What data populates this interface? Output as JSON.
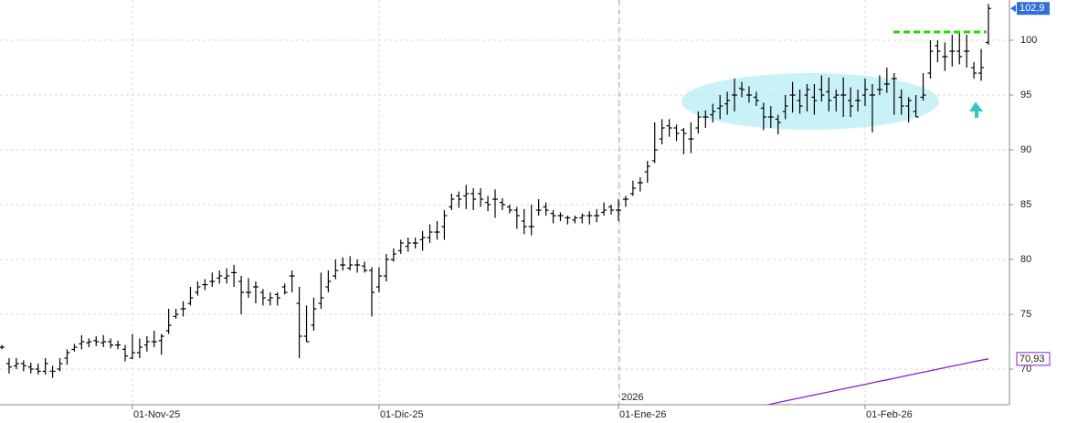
{
  "chart_data": {
    "type": "ohlc",
    "ylim": [
      66.75,
      103.67
    ],
    "yticks": [
      70,
      75,
      80,
      85,
      90,
      95,
      100
    ],
    "grid": true,
    "bar_color": "#000000",
    "year_label": "2026",
    "year_index": 85,
    "close_label": "102,9",
    "resistance": {
      "value": 100.75,
      "color": "#22dd00"
    },
    "categories": [
      null,
      null,
      null,
      null,
      null,
      null,
      null,
      null,
      null,
      null,
      null,
      null,
      null,
      null,
      null,
      null,
      null,
      null,
      "01-Nov-25",
      null,
      null,
      null,
      null,
      null,
      null,
      null,
      null,
      null,
      null,
      null,
      null,
      null,
      null,
      null,
      null,
      null,
      null,
      null,
      null,
      null,
      null,
      null,
      null,
      null,
      null,
      null,
      null,
      null,
      null,
      null,
      null,
      null,
      "01-Dic-25",
      null,
      null,
      null,
      null,
      null,
      null,
      null,
      null,
      null,
      null,
      null,
      null,
      null,
      null,
      null,
      null,
      null,
      null,
      null,
      null,
      null,
      null,
      null,
      null,
      null,
      null,
      null,
      null,
      null,
      null,
      null,
      null,
      "01-Ene-26",
      null,
      null,
      null,
      null,
      null,
      null,
      null,
      null,
      null,
      null,
      null,
      null,
      null,
      null,
      null,
      null,
      null,
      null,
      null,
      null,
      null,
      null,
      null,
      null,
      null,
      null,
      null,
      null,
      null,
      null,
      null,
      null,
      null,
      "01-Feb-26",
      null,
      null,
      null,
      null,
      null,
      null,
      null,
      null,
      null,
      null,
      null,
      null,
      null,
      null,
      null,
      null,
      null
    ],
    "bars": [
      [
        72,
        72.2,
        71.8,
        72
      ],
      [
        70.5,
        71,
        69.6,
        70.2
      ],
      [
        70.3,
        71,
        70,
        70.5
      ],
      [
        70.5,
        70.8,
        69.8,
        70.3
      ],
      [
        70.2,
        70.6,
        69.6,
        70
      ],
      [
        70,
        70.5,
        69.5,
        69.8
      ],
      [
        69.8,
        71,
        69.5,
        70.5
      ],
      [
        69.8,
        70.3,
        69.2,
        69.8
      ],
      [
        70,
        71,
        69.8,
        70.5
      ],
      [
        71,
        71.8,
        70.4,
        71.5
      ],
      [
        71.8,
        72.3,
        71.6,
        72
      ],
      [
        72.3,
        73.1,
        71.8,
        72.5
      ],
      [
        72.4,
        72.8,
        72,
        72.5
      ],
      [
        72.6,
        73,
        72.1,
        72.5
      ],
      [
        72.4,
        73.1,
        72,
        72.5
      ],
      [
        72.5,
        72.8,
        71.9,
        72.2
      ],
      [
        72.2,
        72.6,
        71.8,
        72.2
      ],
      [
        71.8,
        72.2,
        70.7,
        71.2
      ],
      [
        71,
        73.2,
        70.9,
        71.5
      ],
      [
        71.5,
        72.8,
        71,
        72
      ],
      [
        72.2,
        73,
        71.6,
        72.5
      ],
      [
        72.5,
        73.5,
        72,
        72.5
      ],
      [
        72.6,
        73.2,
        71.3,
        73
      ],
      [
        73.5,
        75.5,
        73.2,
        74
      ],
      [
        74.8,
        75.5,
        74.6,
        75
      ],
      [
        75.5,
        76.2,
        74.8,
        75.5
      ],
      [
        76,
        77.5,
        75.8,
        76.5
      ],
      [
        77,
        78,
        76.7,
        77.5
      ],
      [
        77.7,
        78.2,
        77.2,
        77.7
      ],
      [
        78,
        78.8,
        77.5,
        78
      ],
      [
        78.3,
        79,
        77.8,
        78.5
      ],
      [
        78.3,
        79.2,
        77.8,
        78.5
      ],
      [
        78.8,
        79.5,
        77.5,
        78.8
      ],
      [
        78,
        78.5,
        75,
        77
      ],
      [
        77,
        78.3,
        76.5,
        77
      ],
      [
        77.5,
        78,
        76,
        77.5
      ],
      [
        77,
        77.3,
        75.8,
        76.5
      ],
      [
        76.3,
        77,
        75.8,
        76.5
      ],
      [
        76.8,
        77,
        75.8,
        76.5
      ],
      [
        77.5,
        77.8,
        76.8,
        77
      ],
      [
        78.5,
        79,
        77,
        78.5
      ],
      [
        76,
        77.5,
        71,
        73
      ],
      [
        73,
        75.8,
        72.5,
        72.5
      ],
      [
        74,
        76.5,
        73.5,
        75.5
      ],
      [
        76,
        78.8,
        75.5,
        76.5
      ],
      [
        77.5,
        79,
        77,
        78
      ],
      [
        78.5,
        80,
        78.2,
        79
      ],
      [
        79.5,
        80.2,
        79,
        79.5
      ],
      [
        79.2,
        80.3,
        79,
        79.5
      ],
      [
        79.5,
        80,
        78.8,
        79.5
      ],
      [
        79.4,
        79.8,
        78.8,
        79
      ],
      [
        79,
        79.3,
        74.8,
        77
      ],
      [
        77.5,
        79.3,
        77,
        78.5
      ],
      [
        78.5,
        80.5,
        78,
        80
      ],
      [
        80,
        81,
        79.8,
        80.5
      ],
      [
        80.8,
        81.8,
        80.5,
        81.5
      ],
      [
        81.2,
        82,
        80.7,
        81.5
      ],
      [
        81.5,
        82,
        81,
        81.5
      ],
      [
        81.8,
        82.6,
        80.8,
        82
      ],
      [
        82,
        83.2,
        81.5,
        82.5
      ],
      [
        82.5,
        83.5,
        81.8,
        82.5
      ],
      [
        83,
        84.5,
        81.8,
        84
      ],
      [
        84.8,
        86,
        84.5,
        85.5
      ],
      [
        85.8,
        86.2,
        84.7,
        85.5
      ],
      [
        85.8,
        86.8,
        84.6,
        86
      ],
      [
        86,
        86.5,
        84.5,
        85.5
      ],
      [
        86,
        86.5,
        84.8,
        85.5
      ],
      [
        85.2,
        85.8,
        84.4,
        85
      ],
      [
        85.5,
        86.4,
        83.8,
        85.5
      ],
      [
        85.2,
        85.6,
        84.5,
        85
      ],
      [
        84.8,
        85,
        84.2,
        84.5
      ],
      [
        84.5,
        84.8,
        82.8,
        84
      ],
      [
        83.5,
        84.6,
        82.3,
        83
      ],
      [
        83,
        85,
        82.2,
        83
      ],
      [
        84.5,
        85.5,
        84,
        84.5
      ],
      [
        84.8,
        85.2,
        84,
        84.5
      ],
      [
        84.2,
        84.5,
        83.3,
        84
      ],
      [
        84,
        84.3,
        83.5,
        84
      ],
      [
        83.8,
        84,
        83.2,
        83.8
      ],
      [
        83.6,
        84,
        83.3,
        83.8
      ],
      [
        83.8,
        84.2,
        83.3,
        84
      ],
      [
        84,
        84.4,
        83.2,
        84
      ],
      [
        84,
        84.6,
        83.4,
        84
      ],
      [
        84.3,
        85.2,
        84,
        84.5
      ],
      [
        84.8,
        85,
        84.1,
        84.5
      ],
      [
        84.5,
        85.5,
        83.5,
        84.5
      ],
      [
        85.5,
        85.8,
        84.8,
        85.5
      ],
      [
        86,
        87.2,
        85.8,
        86.5
      ],
      [
        87,
        87.5,
        86.2,
        87
      ],
      [
        88,
        89,
        87,
        88.5
      ],
      [
        89,
        92.5,
        88.8,
        90
      ],
      [
        91,
        92.8,
        90.5,
        92
      ],
      [
        92.2,
        92.8,
        91.2,
        92
      ],
      [
        92,
        92.3,
        90.8,
        91.5
      ],
      [
        91.8,
        92,
        89.6,
        91.5
      ],
      [
        91,
        92.5,
        89.7,
        91
      ],
      [
        92,
        93.5,
        91.5,
        93
      ],
      [
        93,
        93.6,
        92,
        93
      ],
      [
        93.2,
        94.2,
        92.5,
        93.5
      ],
      [
        93.8,
        95,
        92.8,
        94
      ],
      [
        94.2,
        95.3,
        93.2,
        94.5
      ],
      [
        95,
        96.5,
        93.5,
        95
      ],
      [
        95.6,
        96.2,
        94.8,
        95.5
      ],
      [
        95,
        95.8,
        94.3,
        95
      ],
      [
        94.8,
        95.3,
        94,
        94.5
      ],
      [
        93.8,
        94.3,
        91.8,
        93
      ],
      [
        93,
        94,
        92,
        93
      ],
      [
        92.8,
        93.2,
        91.4,
        92.5
      ],
      [
        93.5,
        95,
        92.8,
        94
      ],
      [
        95,
        96.2,
        93.4,
        95
      ],
      [
        94.5,
        95.5,
        93.3,
        94
      ],
      [
        95,
        96,
        93.5,
        95.5
      ],
      [
        94.8,
        96,
        93.2,
        94.5
      ],
      [
        95.5,
        96.8,
        94.4,
        95
      ],
      [
        95.3,
        96.6,
        93.5,
        94.5
      ],
      [
        94.8,
        95.5,
        93.5,
        95
      ],
      [
        95,
        96.6,
        93,
        95
      ],
      [
        94.5,
        95.7,
        93,
        94
      ],
      [
        94.5,
        95.5,
        93.5,
        94.5
      ],
      [
        95,
        96.5,
        94,
        95.5
      ],
      [
        95,
        96,
        91.6,
        95
      ],
      [
        95.5,
        96.8,
        95,
        95.5
      ],
      [
        96,
        97.5,
        95.2,
        96
      ],
      [
        96.5,
        97,
        93.2,
        96.5
      ],
      [
        94.8,
        95.5,
        93.2,
        94
      ],
      [
        94,
        94.8,
        92.5,
        94.5
      ],
      [
        93.5,
        95,
        93,
        93
      ],
      [
        94.8,
        97,
        94.5,
        95
      ],
      [
        97,
        100,
        96.5,
        99
      ],
      [
        99.5,
        100,
        98,
        99
      ],
      [
        98.5,
        99.8,
        97.2,
        98.5
      ],
      [
        99,
        100.5,
        97.6,
        99
      ],
      [
        99,
        100.8,
        97.8,
        98.5
      ],
      [
        99,
        100.5,
        97.5,
        99
      ],
      [
        97.5,
        98,
        96.5,
        97
      ],
      [
        97,
        99.2,
        96.3,
        97.5
      ],
      [
        99.8,
        103.3,
        99.6,
        102.9
      ]
    ],
    "ma": {
      "color": "#8a1ccf",
      "last_label": "70,93",
      "values": [
        null,
        null,
        null,
        null,
        null,
        null,
        null,
        null,
        null,
        null,
        null,
        null,
        null,
        null,
        null,
        null,
        null,
        null,
        null,
        null,
        null,
        null,
        null,
        null,
        null,
        null,
        null,
        null,
        null,
        null,
        null,
        null,
        null,
        null,
        null,
        null,
        null,
        null,
        null,
        null,
        null,
        null,
        null,
        null,
        null,
        null,
        null,
        null,
        null,
        null,
        null,
        null,
        null,
        null,
        null,
        null,
        null,
        null,
        null,
        null,
        null,
        null,
        null,
        null,
        null,
        null,
        null,
        null,
        null,
        null,
        null,
        null,
        null,
        null,
        null,
        null,
        null,
        null,
        null,
        null,
        null,
        null,
        null,
        null,
        null,
        null,
        null,
        null,
        null,
        null,
        null,
        null,
        null,
        null,
        null,
        null,
        null,
        null,
        null,
        null,
        null,
        null,
        null,
        66.4,
        66.54,
        66.68,
        66.82,
        66.95,
        67.09,
        67.23,
        67.37,
        67.51,
        67.64,
        67.78,
        67.92,
        68.06,
        68.2,
        68.33,
        68.47,
        68.61,
        68.75,
        68.89,
        69.02,
        69.16,
        69.3,
        69.44,
        69.58,
        69.71,
        69.85,
        69.99,
        70.13,
        70.27,
        70.4,
        70.54,
        70.68,
        70.81,
        70.93
      ]
    }
  }
}
